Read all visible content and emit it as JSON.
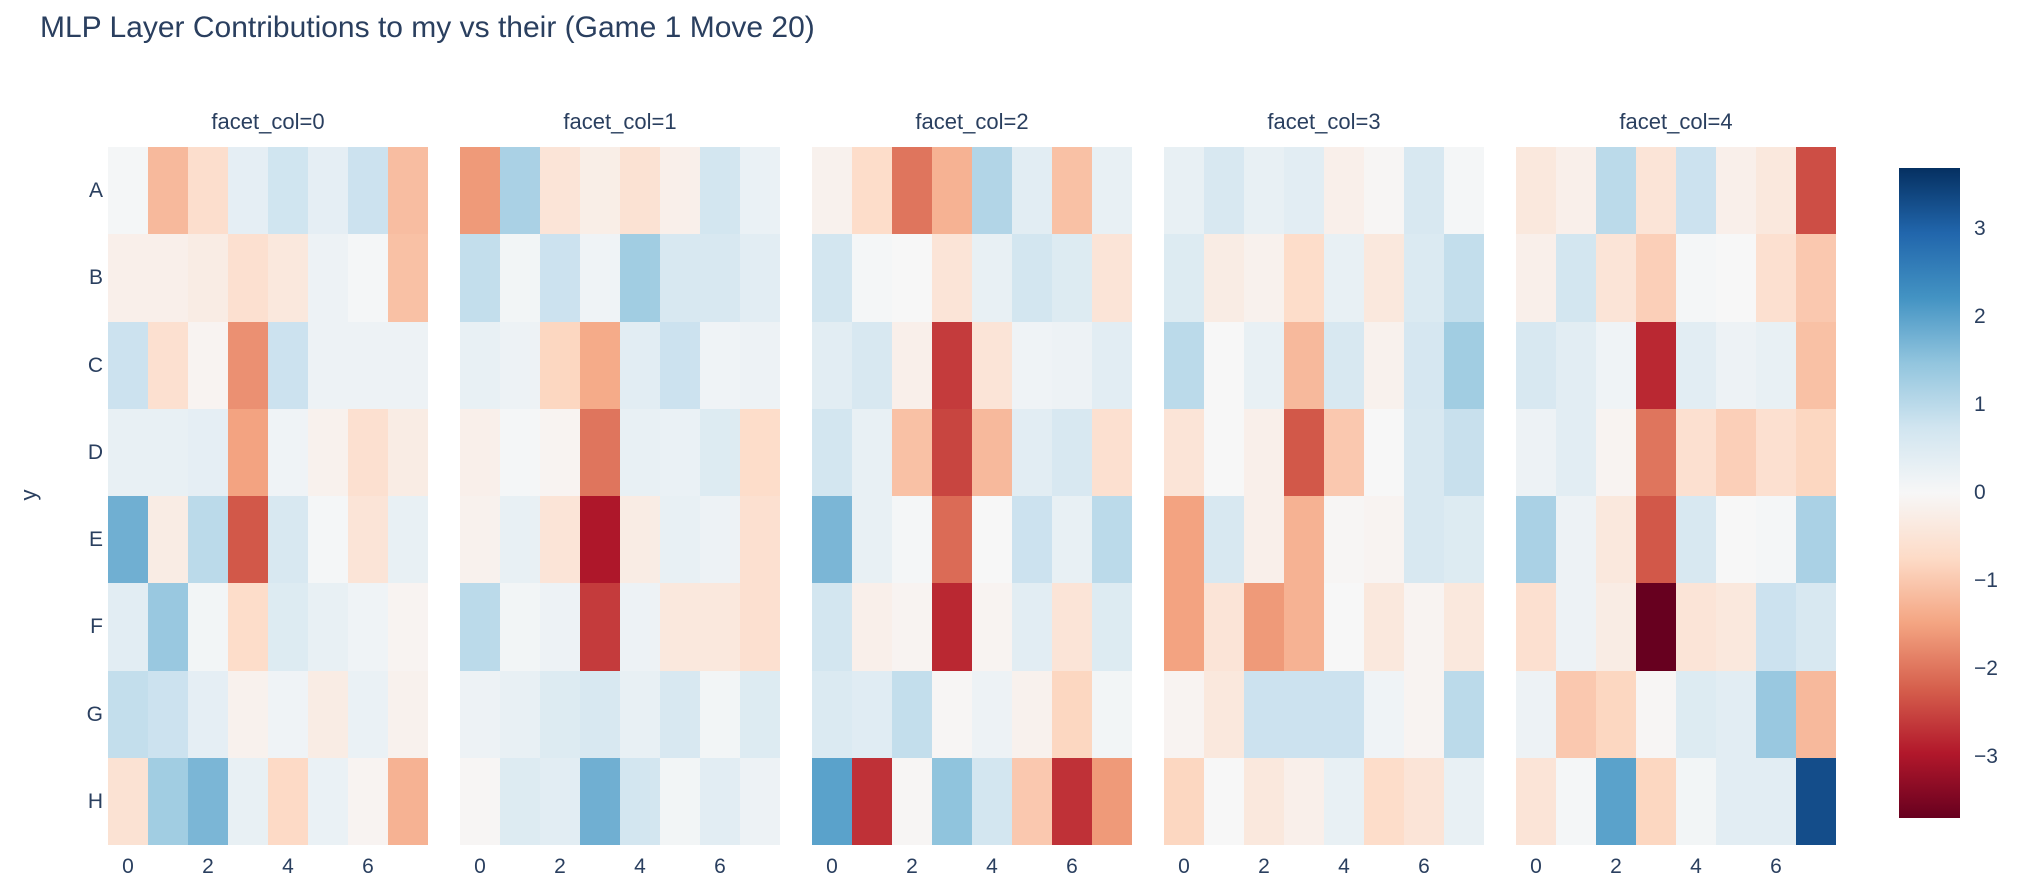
{
  "title": "MLP Layer Contributions to my vs their (Game 1 Move 20)",
  "text_color": "#2a3f5f",
  "axes": {
    "y_title": "y",
    "y_labels": [
      "A",
      "B",
      "C",
      "D",
      "E",
      "F",
      "G",
      "H"
    ],
    "x_tick_labels": [
      "0",
      "2",
      "4",
      "6"
    ],
    "x_tick_values": [
      0,
      2,
      4,
      6
    ]
  },
  "colorbar": {
    "tick_labels": [
      "3",
      "2",
      "1",
      "0",
      "−1",
      "−2",
      "−3"
    ],
    "tick_values": [
      3,
      2,
      1,
      0,
      -1,
      -2,
      -3
    ]
  },
  "chart_data": {
    "type": "heatmap",
    "title": "MLP Layer Contributions to my vs their (Game 1 Move 20)",
    "colorscale": "RdBu",
    "zmin": -3.7,
    "zmax": 3.7,
    "x": [
      0,
      1,
      2,
      3,
      4,
      5,
      6,
      7
    ],
    "y_categories": [
      "A",
      "B",
      "C",
      "D",
      "E",
      "F",
      "G",
      "H"
    ],
    "legend_position": "right-colorbar",
    "grid": false,
    "facets": [
      {
        "label": "facet_col=0",
        "z": [
          [
            0.05,
            -1.2,
            -0.65,
            0.35,
            0.75,
            0.35,
            0.8,
            -1.15
          ],
          [
            -0.2,
            -0.2,
            -0.3,
            -0.6,
            -0.4,
            0.2,
            0.05,
            -1.1
          ],
          [
            0.8,
            -0.6,
            -0.1,
            -1.7,
            0.8,
            0.2,
            0.2,
            0.2
          ],
          [
            0.3,
            0.3,
            0.35,
            -1.5,
            0.15,
            -0.15,
            -0.6,
            -0.3
          ],
          [
            1.8,
            -0.3,
            1.0,
            -2.3,
            0.6,
            0.05,
            -0.5,
            0.3
          ],
          [
            0.4,
            1.4,
            0.1,
            -0.7,
            0.5,
            0.3,
            0.15,
            -0.1
          ],
          [
            0.9,
            0.8,
            0.35,
            -0.15,
            0.15,
            -0.3,
            0.25,
            -0.15
          ],
          [
            -0.55,
            1.3,
            1.7,
            0.3,
            -0.75,
            0.25,
            -0.1,
            -1.3
          ]
        ]
      },
      {
        "label": "facet_col=1",
        "z": [
          [
            -1.6,
            1.2,
            -0.5,
            -0.25,
            -0.55,
            -0.2,
            0.7,
            0.25
          ],
          [
            0.9,
            0.1,
            0.8,
            0.15,
            1.3,
            0.6,
            0.6,
            0.4
          ],
          [
            0.3,
            0.2,
            -0.8,
            -1.4,
            0.4,
            0.8,
            0.15,
            0.2
          ],
          [
            -0.2,
            0.05,
            -0.1,
            -2.0,
            0.3,
            0.25,
            0.5,
            -0.7
          ],
          [
            -0.15,
            0.3,
            -0.5,
            -3.0,
            -0.3,
            0.3,
            0.2,
            -0.6
          ],
          [
            1.0,
            0.1,
            0.2,
            -2.6,
            0.2,
            -0.4,
            -0.4,
            -0.6
          ],
          [
            0.2,
            0.3,
            0.5,
            0.6,
            0.3,
            0.6,
            0.1,
            0.5
          ],
          [
            -0.05,
            0.5,
            0.4,
            1.8,
            0.7,
            0.1,
            0.4,
            0.2
          ]
        ]
      },
      {
        "label": "facet_col=2",
        "z": [
          [
            -0.15,
            -0.7,
            -2.0,
            -1.3,
            1.1,
            0.4,
            -1.1,
            0.3
          ],
          [
            0.7,
            0.05,
            0.0,
            -0.5,
            0.3,
            0.7,
            0.5,
            -0.5
          ],
          [
            0.4,
            0.6,
            -0.2,
            -2.6,
            -0.5,
            0.15,
            0.2,
            0.4
          ],
          [
            0.7,
            0.3,
            -1.1,
            -2.5,
            -1.2,
            0.4,
            0.6,
            -0.6
          ],
          [
            1.7,
            0.3,
            0.05,
            -2.1,
            0.0,
            0.8,
            0.3,
            1.0
          ],
          [
            0.7,
            -0.2,
            -0.1,
            -2.8,
            -0.1,
            0.4,
            -0.5,
            0.5
          ],
          [
            0.55,
            0.45,
            0.9,
            -0.05,
            0.2,
            -0.15,
            -0.8,
            0.1
          ],
          [
            2.0,
            -2.7,
            -0.05,
            1.5,
            0.7,
            -1.0,
            -2.7,
            -1.6
          ]
        ]
      },
      {
        "label": "facet_col=3",
        "z": [
          [
            0.3,
            0.6,
            0.3,
            0.4,
            -0.2,
            -0.05,
            0.6,
            0.05
          ],
          [
            0.5,
            -0.3,
            -0.15,
            -0.7,
            0.3,
            -0.4,
            0.55,
            0.9
          ],
          [
            1.0,
            0.0,
            0.3,
            -1.2,
            0.6,
            -0.15,
            0.65,
            1.3
          ],
          [
            -0.5,
            0.0,
            -0.2,
            -2.3,
            -1.0,
            0.0,
            0.6,
            0.85
          ],
          [
            -1.5,
            0.6,
            -0.2,
            -1.3,
            -0.05,
            -0.1,
            0.6,
            0.5
          ],
          [
            -1.5,
            -0.5,
            -1.6,
            -1.3,
            0.0,
            -0.4,
            -0.1,
            -0.4
          ],
          [
            -0.1,
            -0.4,
            0.8,
            0.8,
            0.8,
            0.15,
            -0.1,
            1.0
          ],
          [
            -0.8,
            0.0,
            -0.4,
            -0.2,
            0.3,
            -0.7,
            -0.5,
            0.3
          ]
        ]
      },
      {
        "label": "facet_col=4",
        "z": [
          [
            -0.4,
            -0.2,
            1.0,
            -0.5,
            0.8,
            -0.2,
            -0.4,
            -2.4
          ],
          [
            -0.2,
            0.7,
            -0.5,
            -0.9,
            0.05,
            0.0,
            -0.6,
            -1.0
          ],
          [
            0.6,
            0.4,
            0.15,
            -2.8,
            0.4,
            0.2,
            0.3,
            -1.1
          ],
          [
            0.2,
            0.4,
            -0.1,
            -2.0,
            -0.6,
            -0.9,
            -0.6,
            -0.8
          ],
          [
            1.2,
            0.2,
            -0.4,
            -2.3,
            0.6,
            0.0,
            0.05,
            1.2
          ],
          [
            -0.6,
            0.2,
            -0.3,
            -3.7,
            -0.5,
            -0.4,
            0.8,
            0.6
          ],
          [
            0.2,
            -1.0,
            -0.8,
            -0.05,
            0.5,
            0.4,
            1.4,
            -1.2
          ],
          [
            -0.5,
            0.05,
            2.0,
            -0.8,
            0.1,
            0.4,
            0.4,
            3.3
          ]
        ]
      }
    ]
  }
}
